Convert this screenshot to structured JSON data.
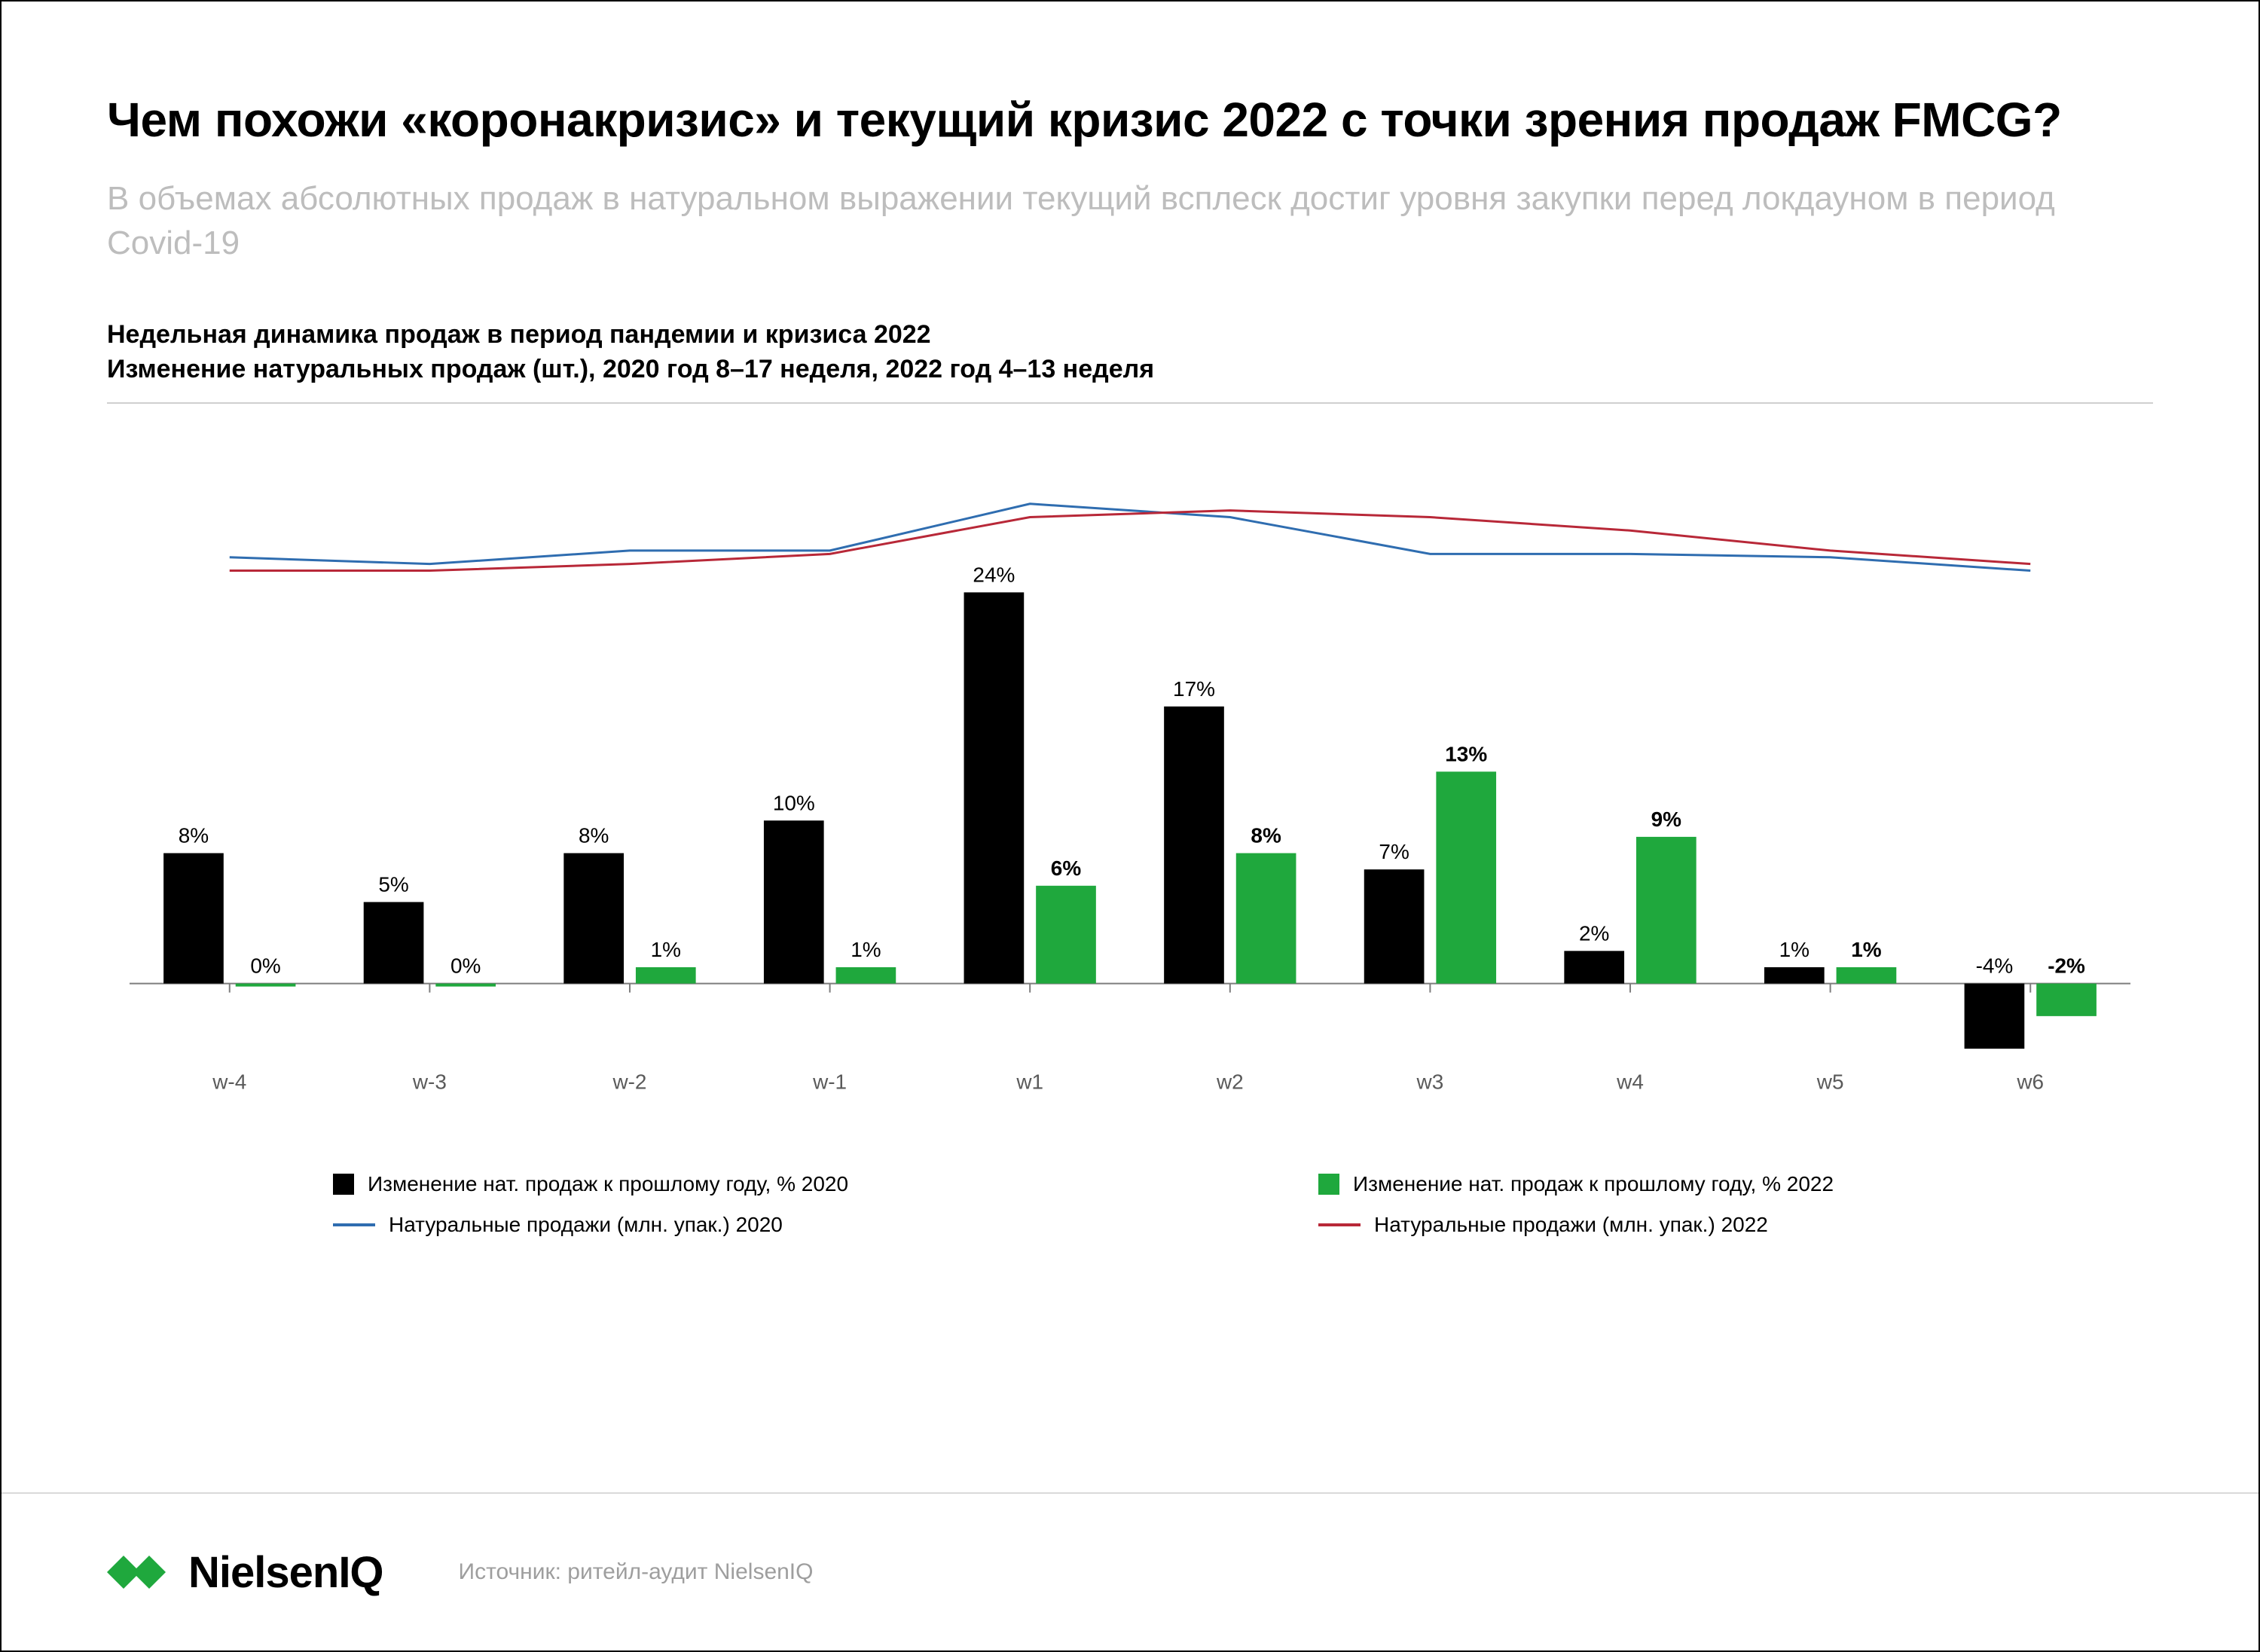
{
  "title": "Чем похожи «коронакризис» и текущий кризис 2022 с точки зрения продаж FMCG?",
  "subtitle": "В объемах абсолютных продаж в натуральном выражении текущий всплеск достиг уровня закупки перед локдауном в период Covid-19",
  "chart_heading_line1": "Недельная динамика продаж в период пандемии и кризиса 2022",
  "chart_heading_line2": "Изменение натуральных продаж (шт.), 2020 год 8–17 неделя, 2022 год 4–13 неделя",
  "source_label": "Источник: ритейл-аудит NielsenIQ",
  "logo_text": "NielsenIQ",
  "chart": {
    "type": "grouped-bar-with-lines",
    "categories": [
      "w-4",
      "w-3",
      "w-2",
      "w-1",
      "w1",
      "w2",
      "w3",
      "w4",
      "w5",
      "w6"
    ],
    "bars_2020": [
      8,
      5,
      8,
      10,
      24,
      17,
      7,
      2,
      1,
      -4
    ],
    "bars_2022": [
      0,
      0,
      1,
      1,
      6,
      8,
      13,
      9,
      1,
      -2
    ],
    "bars_2020_labels": [
      "8%",
      "5%",
      "8%",
      "10%",
      "24%",
      "17%",
      "7%",
      "2%",
      "1%",
      "-4%"
    ],
    "bars_2022_labels": [
      "0%",
      "0%",
      "1%",
      "1%",
      "6%",
      "8%",
      "13%",
      "9%",
      "1%",
      "-2%"
    ],
    "bars_2022_bold": [
      false,
      false,
      false,
      false,
      true,
      true,
      true,
      true,
      true,
      true
    ],
    "line_2020": [
      84,
      82,
      86,
      86,
      100,
      96,
      85,
      85,
      84,
      80
    ],
    "line_2022": [
      80,
      80,
      82,
      85,
      96,
      98,
      96,
      92,
      86,
      82
    ],
    "y_bar_min": -6,
    "y_bar_max": 30,
    "y_line_min": 60,
    "y_line_max": 105,
    "colors": {
      "bar_2020": "#000000",
      "bar_2022": "#1fa83d",
      "line_2020": "#2f6db0",
      "line_2022": "#b82838",
      "axis": "#7d7d7d",
      "xlabel": "#5a5a5a",
      "background": "#ffffff"
    },
    "bar_width_ratio": 0.3,
    "bar_gap_ratio": 0.06,
    "line_width": 3
  },
  "legend": {
    "bar_2020": "Изменение нат. продаж к прошлому году, % 2020",
    "bar_2022": "Изменение нат. продаж к прошлому году, % 2022",
    "line_2020": "Натуральные продажи (млн. упак.) 2020",
    "line_2022": "Натуральные продажи (млн. упак.) 2022"
  }
}
